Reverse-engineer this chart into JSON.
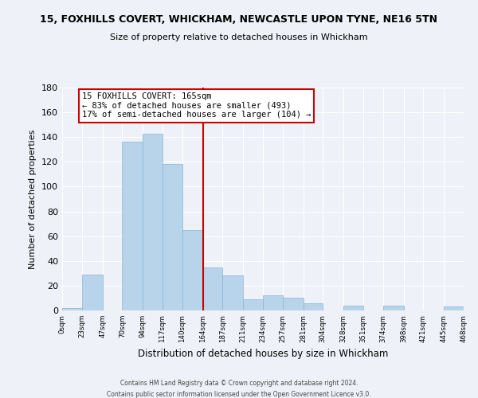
{
  "title": "15, FOXHILLS COVERT, WHICKHAM, NEWCASTLE UPON TYNE, NE16 5TN",
  "subtitle": "Size of property relative to detached houses in Whickham",
  "xlabel": "Distribution of detached houses by size in Whickham",
  "ylabel": "Number of detached properties",
  "bar_color": "#b8d4ea",
  "bar_edge_color": "#8ab4d4",
  "background_color": "#eef2f8",
  "grid_color": "#ffffff",
  "bin_edges": [
    0,
    23,
    47,
    70,
    94,
    117,
    140,
    164,
    187,
    211,
    234,
    257,
    281,
    304,
    328,
    351,
    374,
    398,
    421,
    445,
    468
  ],
  "counts": [
    2,
    29,
    0,
    136,
    143,
    118,
    65,
    35,
    28,
    9,
    12,
    10,
    6,
    0,
    4,
    0,
    4,
    0,
    0,
    3
  ],
  "tick_labels": [
    "0sqm",
    "23sqm",
    "47sqm",
    "70sqm",
    "94sqm",
    "117sqm",
    "140sqm",
    "164sqm",
    "187sqm",
    "211sqm",
    "234sqm",
    "257sqm",
    "281sqm",
    "304sqm",
    "328sqm",
    "351sqm",
    "374sqm",
    "398sqm",
    "421sqm",
    "445sqm",
    "468sqm"
  ],
  "vline_x": 164,
  "vline_color": "#cc0000",
  "annotation_title": "15 FOXHILLS COVERT: 165sqm",
  "annotation_line1": "← 83% of detached houses are smaller (493)",
  "annotation_line2": "17% of semi-detached houses are larger (104) →",
  "annotation_box_color": "#ffffff",
  "annotation_box_edge": "#cc0000",
  "ylim": [
    0,
    180
  ],
  "yticks": [
    0,
    20,
    40,
    60,
    80,
    100,
    120,
    140,
    160,
    180
  ],
  "footnote1": "Contains HM Land Registry data © Crown copyright and database right 2024.",
  "footnote2": "Contains public sector information licensed under the Open Government Licence v3.0."
}
